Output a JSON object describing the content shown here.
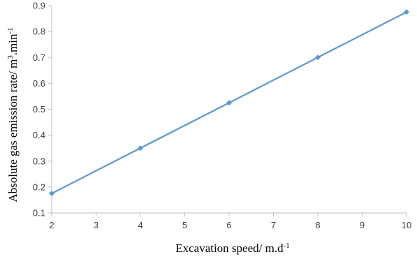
{
  "chart_data": {
    "type": "line",
    "title": "",
    "xlabel": "Excavation speed/ m.d-1",
    "xlabel_parts": {
      "base": "Excavation speed/ m.d",
      "sup": "-1"
    },
    "ylabel": "Absolute gas emission rate/ m3.min-1",
    "ylabel_parts": {
      "a": "Absolute gas emission rate/ m",
      "sup1": "3",
      "b": ".min",
      "sup2": "-1"
    },
    "xlim": [
      2,
      10
    ],
    "ylim": [
      0.1,
      0.9
    ],
    "x_ticks": [
      "2",
      "3",
      "4",
      "5",
      "6",
      "7",
      "8",
      "9",
      "10"
    ],
    "y_ticks": [
      "0.1",
      "0.2",
      "0.3",
      "0.4",
      "0.5",
      "0.6",
      "0.7",
      "0.8",
      "0.9"
    ],
    "grid": false,
    "series": [
      {
        "color": "#5b9bd5",
        "marker": "diamond",
        "x": [
          2,
          4,
          6,
          8,
          10
        ],
        "y": [
          0.175,
          0.35,
          0.525,
          0.7,
          0.875
        ]
      }
    ]
  }
}
